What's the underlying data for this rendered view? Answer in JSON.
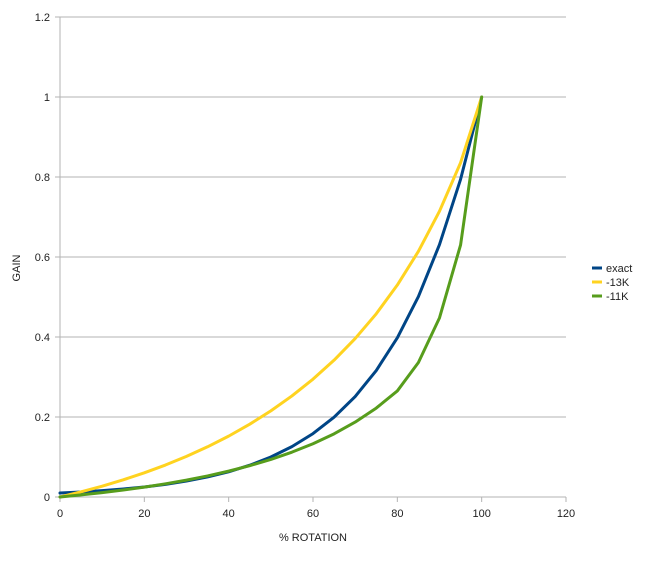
{
  "chart_data": {
    "type": "line",
    "title": "",
    "xlabel": "% ROTATION",
    "ylabel": "GAIN",
    "xlim": [
      0,
      120
    ],
    "ylim": [
      0,
      1.2
    ],
    "x_ticks": [
      "0",
      "20",
      "40",
      "60",
      "80",
      "100",
      "120"
    ],
    "y_ticks": [
      "0",
      "0.2",
      "0.4",
      "0.6",
      "0.8",
      "1",
      "1.2"
    ],
    "grid": "horizontal",
    "legend_position": "right",
    "series": [
      {
        "name": "exact",
        "color": "#004586",
        "points": [
          [
            0,
            0.01
          ],
          [
            5,
            0.0125
          ],
          [
            10,
            0.0158
          ],
          [
            15,
            0.02
          ],
          [
            20,
            0.0251
          ],
          [
            25,
            0.0316
          ],
          [
            30,
            0.0398
          ],
          [
            35,
            0.0501
          ],
          [
            40,
            0.0631
          ],
          [
            45,
            0.0794
          ],
          [
            50,
            0.1
          ],
          [
            55,
            0.1259
          ],
          [
            60,
            0.1585
          ],
          [
            65,
            0.1995
          ],
          [
            70,
            0.2512
          ],
          [
            75,
            0.3162
          ],
          [
            80,
            0.3981
          ],
          [
            85,
            0.5012
          ],
          [
            90,
            0.631
          ],
          [
            95,
            0.7943
          ],
          [
            100,
            1.0
          ]
        ]
      },
      {
        "name": "-13K",
        "color": "#ffd320",
        "points": [
          [
            0,
            0.0
          ],
          [
            5,
            0.0129
          ],
          [
            10,
            0.0271
          ],
          [
            15,
            0.0429
          ],
          [
            20,
            0.0604
          ],
          [
            25,
            0.0799
          ],
          [
            30,
            0.1015
          ],
          [
            35,
            0.1255
          ],
          [
            40,
            0.1522
          ],
          [
            45,
            0.182
          ],
          [
            50,
            0.2153
          ],
          [
            55,
            0.2526
          ],
          [
            60,
            0.2946
          ],
          [
            65,
            0.3421
          ],
          [
            70,
            0.3961
          ],
          [
            75,
            0.458
          ],
          [
            80,
            0.5299
          ],
          [
            85,
            0.6142
          ],
          [
            90,
            0.7145
          ],
          [
            95,
            0.8357
          ],
          [
            100,
            1.0
          ]
        ]
      },
      {
        "name": "-11K",
        "color": "#579d1c",
        "points": [
          [
            0,
            0.0
          ],
          [
            5,
            0.0052
          ],
          [
            10,
            0.011
          ],
          [
            15,
            0.0175
          ],
          [
            20,
            0.0248
          ],
          [
            25,
            0.033
          ],
          [
            30,
            0.0422
          ],
          [
            35,
            0.0527
          ],
          [
            40,
            0.0647
          ],
          [
            45,
            0.0783
          ],
          [
            50,
            0.094
          ],
          [
            55,
            0.1121
          ],
          [
            60,
            0.1332
          ],
          [
            65,
            0.1579
          ],
          [
            70,
            0.1872
          ],
          [
            75,
            0.2223
          ],
          [
            80,
            0.2652
          ],
          [
            85,
            0.3362
          ],
          [
            90,
            0.4479
          ],
          [
            95,
            0.6302
          ],
          [
            100,
            1.0
          ]
        ]
      }
    ]
  }
}
